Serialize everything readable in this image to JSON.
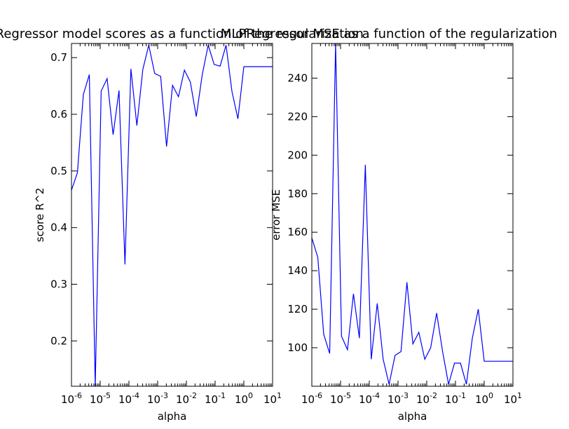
{
  "chart_data": [
    {
      "type": "line",
      "title": "MLPRegressor model scores as a function of the regularization",
      "xlabel": "alpha",
      "ylabel": "score R^2",
      "xscale": "log",
      "xlim": [
        1e-06,
        10
      ],
      "ylim": [
        0.12,
        0.725
      ],
      "xticks": [
        {
          "value": 1e-06,
          "base": "10",
          "exp": "-6"
        },
        {
          "value": 1e-05,
          "base": "10",
          "exp": "-5"
        },
        {
          "value": 0.0001,
          "base": "10",
          "exp": "-4"
        },
        {
          "value": 0.001,
          "base": "10",
          "exp": "-3"
        },
        {
          "value": 0.01,
          "base": "10",
          "exp": "-2"
        },
        {
          "value": 0.1,
          "base": "10",
          "exp": "-1"
        },
        {
          "value": 1,
          "base": "10",
          "exp": "0"
        },
        {
          "value": 10,
          "base": "10",
          "exp": "1"
        }
      ],
      "yticks": [
        0.2,
        0.3,
        0.4,
        0.5,
        0.6,
        0.7
      ],
      "ytick_labels": [
        "0.2",
        "0.3",
        "0.4",
        "0.5",
        "0.6",
        "0.7"
      ],
      "grid": false,
      "series": [
        {
          "color": "#0000ff",
          "x": [
            1e-06,
            1.61e-06,
            2.59e-06,
            4.18e-06,
            6.72e-06,
            1.08e-05,
            1.74e-05,
            2.81e-05,
            4.52e-05,
            7.28e-05,
            0.000117,
            0.000189,
            0.000304,
            0.000489,
            0.000788,
            0.00127,
            0.00204,
            0.00329,
            0.0053,
            0.00853,
            0.0137,
            0.0221,
            0.0356,
            0.0574,
            0.0924,
            0.149,
            0.24,
            0.386,
            0.621,
            1.0,
            1.61,
            2.59,
            4.18,
            6.72,
            10.0
          ],
          "y": [
            0.466,
            0.497,
            0.635,
            0.67,
            0.12,
            0.641,
            0.663,
            0.564,
            0.642,
            0.335,
            0.68,
            0.58,
            0.679,
            0.722,
            0.672,
            0.667,
            0.543,
            0.651,
            0.631,
            0.678,
            0.657,
            0.596,
            0.67,
            0.722,
            0.688,
            0.685,
            0.722,
            0.64,
            0.592,
            0.684,
            0.684,
            0.684,
            0.684,
            0.684,
            0.684
          ]
        }
      ]
    },
    {
      "type": "line",
      "title": "MLPRegressor MSE as a function of the regularization",
      "xlabel": "alpha",
      "ylabel": "error MSE",
      "xscale": "log",
      "xlim": [
        1e-06,
        10
      ],
      "ylim": [
        80,
        258
      ],
      "xticks": [
        {
          "value": 1e-06,
          "base": "10",
          "exp": "-6"
        },
        {
          "value": 1e-05,
          "base": "10",
          "exp": "-5"
        },
        {
          "value": 0.0001,
          "base": "10",
          "exp": "-4"
        },
        {
          "value": 0.001,
          "base": "10",
          "exp": "-3"
        },
        {
          "value": 0.01,
          "base": "10",
          "exp": "-2"
        },
        {
          "value": 0.1,
          "base": "10",
          "exp": "-1"
        },
        {
          "value": 1,
          "base": "10",
          "exp": "0"
        },
        {
          "value": 10,
          "base": "10",
          "exp": "1"
        }
      ],
      "yticks": [
        100,
        120,
        140,
        160,
        180,
        200,
        220,
        240
      ],
      "ytick_labels": [
        "100",
        "120",
        "140",
        "160",
        "180",
        "200",
        "220",
        "240"
      ],
      "grid": false,
      "series": [
        {
          "color": "#0000ff",
          "x": [
            1e-06,
            1.61e-06,
            2.59e-06,
            4.18e-06,
            6.72e-06,
            1.08e-05,
            1.74e-05,
            2.81e-05,
            4.52e-05,
            7.28e-05,
            0.000117,
            0.000189,
            0.000304,
            0.000489,
            0.000788,
            0.00127,
            0.00204,
            0.00329,
            0.0053,
            0.00853,
            0.0137,
            0.0221,
            0.0356,
            0.0574,
            0.0924,
            0.149,
            0.24,
            0.386,
            0.621,
            1.0,
            1.61,
            2.59,
            4.18,
            6.72,
            10.0
          ],
          "y": [
            157,
            147,
            107,
            97,
            258,
            106,
            99,
            128,
            105,
            195,
            94,
            123,
            94,
            81,
            96,
            98,
            134,
            102,
            108,
            94,
            100,
            118,
            98,
            81,
            92,
            92,
            81,
            105,
            120,
            93,
            93,
            93,
            93,
            93,
            93
          ]
        }
      ]
    }
  ]
}
